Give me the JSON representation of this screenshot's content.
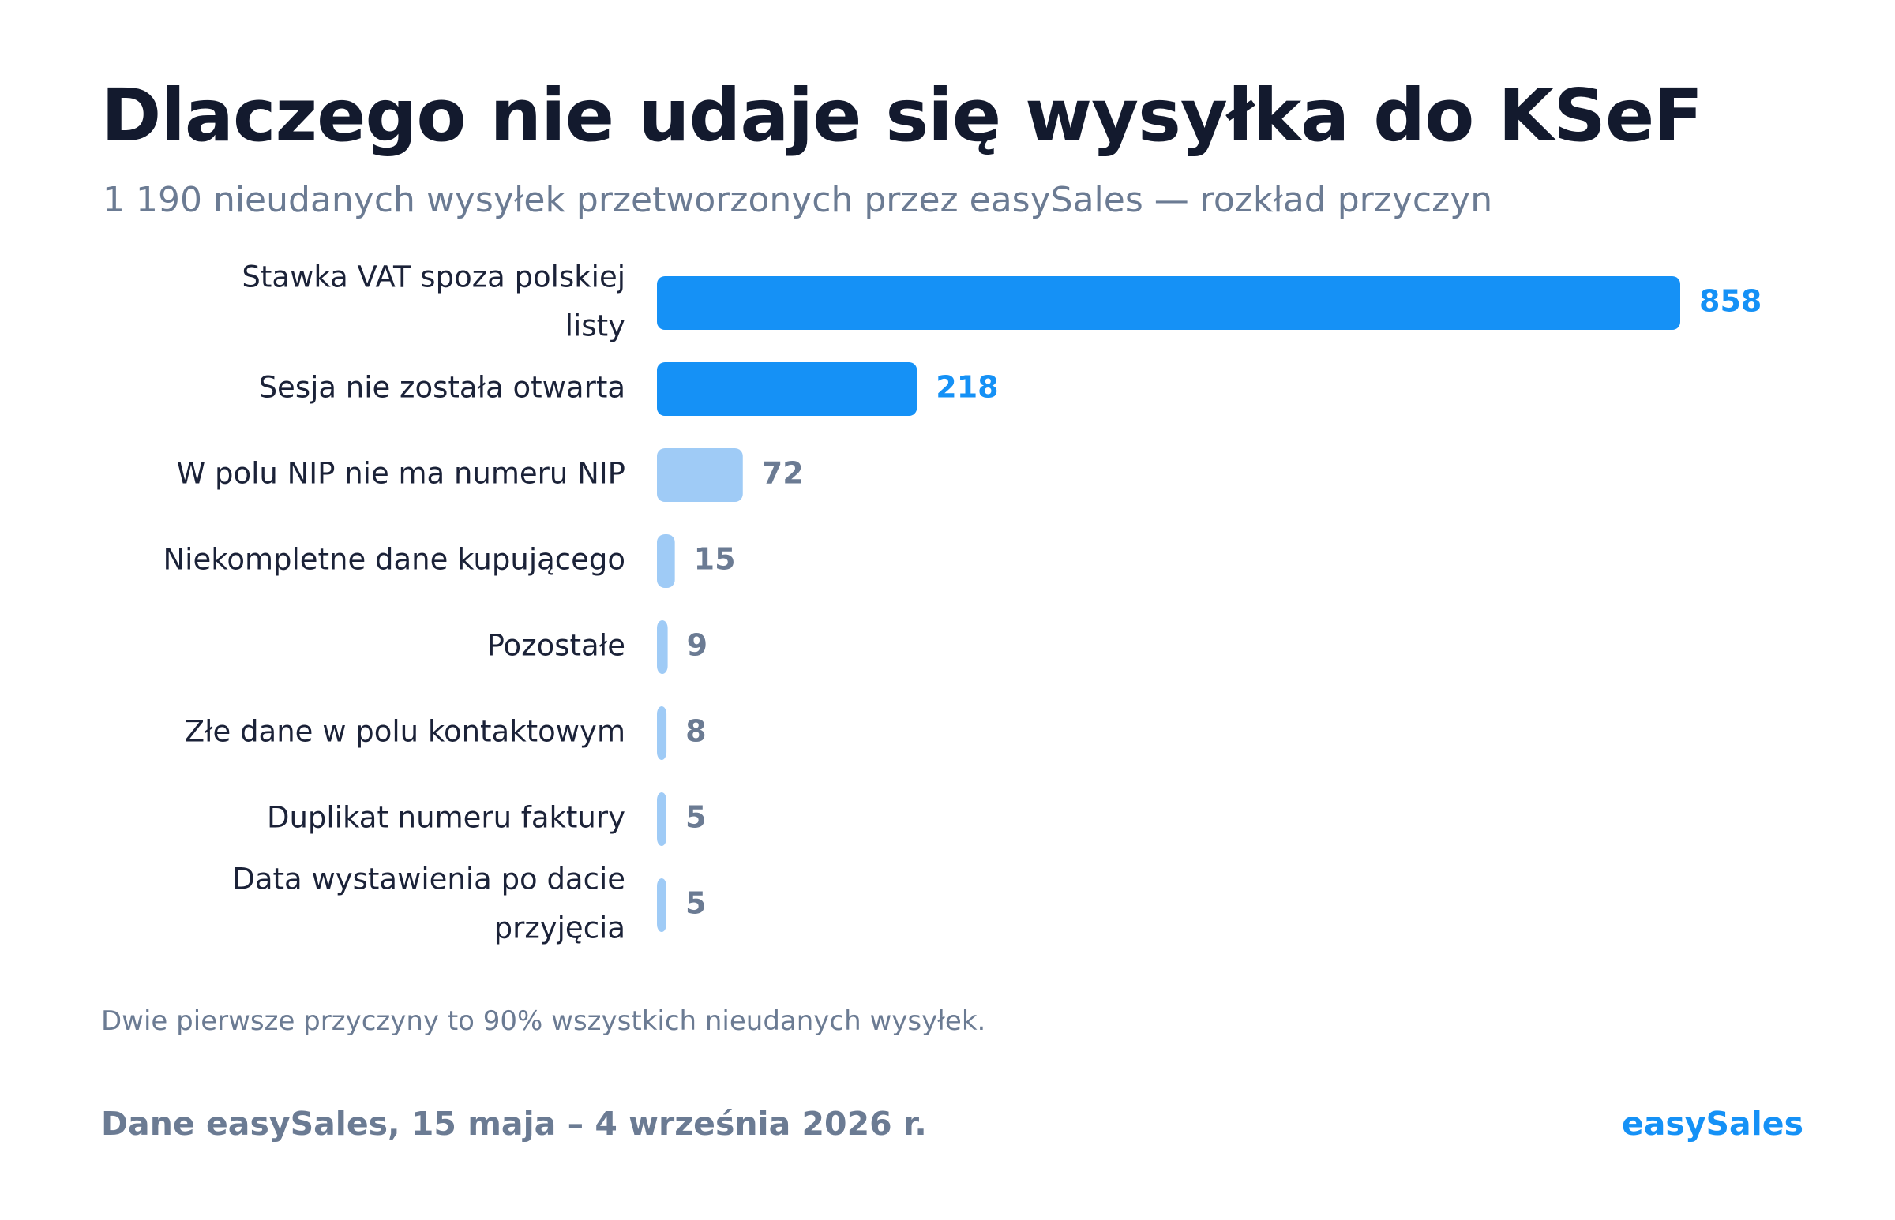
{
  "header": {
    "title": "Dlaczego nie udaje się wysyłka do KSeF",
    "subtitle": "1 190 nieudanych wysyłek przetworzonych przez easySales — rozkład przyczyn"
  },
  "colors": {
    "highlight": "#1591f6",
    "muted_bar": "#9fcbf6",
    "muted_value": "#6b7b93",
    "label": "#1b2238"
  },
  "chart_data": {
    "type": "bar",
    "orientation": "horizontal",
    "categories": [
      "Stawka VAT spoza polskiej listy",
      "Sesja nie została otwarta",
      "W polu NIP nie ma numeru NIP",
      "Niekompletne dane kupującego",
      "Pozostałe",
      "Złe dane w polu kontaktowym",
      "Duplikat numeru faktury",
      "Data wystawienia po dacie przyjęcia"
    ],
    "values": [
      858,
      218,
      72,
      15,
      9,
      8,
      5,
      5
    ],
    "highlighted": [
      true,
      true,
      false,
      false,
      false,
      false,
      false,
      false
    ],
    "xlim": [
      0,
      858
    ],
    "grid": false,
    "legend": "none"
  },
  "footer": {
    "note": "Dwie pierwsze przyczyny to 90% wszystkich nieudanych wysyłek.",
    "source": "Dane easySales, 15 maja – 4 września 2026 r.",
    "brand": "easySales"
  }
}
